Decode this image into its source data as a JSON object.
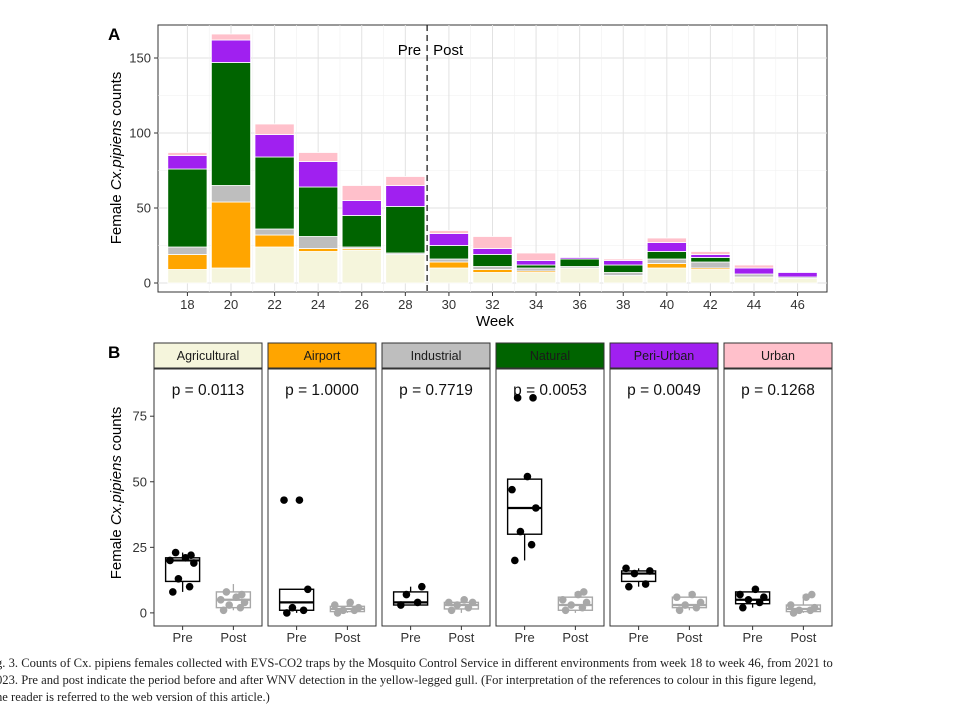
{
  "panel_a": {
    "tag": "A",
    "ylabel_prefix": "Female ",
    "ylabel_italic": "Cx.pipiens",
    "ylabel_suffix": " counts",
    "xlabel": "Week",
    "pre_label": "Pre",
    "post_label": "Post"
  },
  "panel_b": {
    "tag": "B",
    "ylabel_prefix": "Female ",
    "ylabel_italic": "Cx.pipiens",
    "ylabel_suffix": " counts"
  },
  "colors": {
    "Agricultural": "#f5f5dc",
    "Airport": "#ffa500",
    "Industrial": "#bebebe",
    "Natural": "#006400",
    "Peri-Urban": "#a020f0",
    "Urban": "#ffc0cb",
    "pre_box": "#000000",
    "post_box": "#a8a8a8"
  },
  "caption": {
    "line1": "g. 3.  Counts of Cx. pipiens females collected with EVS-CO2 traps by the Mosquito Control Service in different environments from week 18 to week 46, from 2021 to",
    "line2": "023. Pre and post indicate the period before and after WNV detection in the yellow-legged gull. (For interpretation of the references to colour in this figure legend,",
    "line3": "he reader is referred to the web version of this article.)"
  },
  "chart_data": [
    {
      "type": "bar",
      "stacked": true,
      "xlabel": "Week",
      "ylabel": "Female Cx.pipiens counts",
      "categories": [
        18,
        20,
        22,
        24,
        26,
        28,
        30,
        32,
        34,
        36,
        38,
        40,
        42,
        44,
        46
      ],
      "x_ticks": [
        18,
        20,
        22,
        24,
        26,
        28,
        30,
        32,
        34,
        36,
        38,
        40,
        42,
        44,
        46
      ],
      "ylim": [
        -6,
        172
      ],
      "y_ticks": [
        0,
        50,
        100,
        150
      ],
      "grid": true,
      "vline": {
        "x": 29,
        "style": "dashed"
      },
      "annotations": [
        "Pre",
        "Post"
      ],
      "series": [
        {
          "name": "Agricultural",
          "values": [
            9,
            10,
            24,
            21,
            22,
            19,
            10,
            7,
            7,
            10,
            5,
            10,
            9,
            4,
            3
          ]
        },
        {
          "name": "Airport",
          "values": [
            10,
            44,
            8,
            2,
            1,
            0,
            4,
            2,
            1,
            0,
            0,
            3,
            1,
            0,
            0
          ]
        },
        {
          "name": "Industrial",
          "values": [
            5,
            11,
            4,
            8,
            1,
            1,
            2,
            2,
            2,
            1,
            2,
            3,
            4,
            2,
            1
          ]
        },
        {
          "name": "Natural",
          "values": [
            52,
            82,
            48,
            33,
            21,
            31,
            9,
            8,
            2,
            5,
            5,
            5,
            3,
            0,
            0
          ]
        },
        {
          "name": "Peri-Urban",
          "values": [
            9,
            15,
            15,
            17,
            10,
            14,
            8,
            4,
            3,
            1,
            3,
            6,
            2,
            4,
            3
          ]
        },
        {
          "name": "Urban",
          "values": [
            2,
            4,
            7,
            6,
            10,
            6,
            2,
            8,
            5,
            0,
            1,
            3,
            2,
            2,
            0
          ]
        }
      ]
    },
    {
      "type": "box",
      "ylabel": "Female Cx.pipiens counts",
      "groups": [
        "Pre",
        "Post"
      ],
      "ylim": [
        -5,
        93
      ],
      "y_ticks": [
        0,
        25,
        50,
        75
      ],
      "facets": [
        {
          "name": "Agricultural",
          "pvalue": "p = 0.0113",
          "pre": {
            "q1": 12,
            "median": 20,
            "q3": 21,
            "min": 8,
            "max": 23,
            "points": [
              8,
              10,
              13,
              19,
              20,
              21,
              22,
              23
            ]
          },
          "post": {
            "q1": 2,
            "median": 5,
            "q3": 8,
            "min": 1,
            "max": 11,
            "points": [
              1,
              2,
              3,
              4,
              5,
              6,
              7,
              8
            ]
          }
        },
        {
          "name": "Airport",
          "pvalue": "p = 1.0000",
          "pre": {
            "q1": 1,
            "median": 4,
            "q3": 9,
            "min": 0,
            "max": 9,
            "points": [
              0,
              1,
              2,
              9,
              43,
              43
            ]
          },
          "post": {
            "q1": 0.5,
            "median": 1.5,
            "q3": 2.5,
            "min": 0,
            "max": 4,
            "points": [
              0,
              1,
              1,
              2,
              3,
              4
            ]
          }
        },
        {
          "name": "Industrial",
          "pvalue": "p = 0.7719",
          "pre": {
            "q1": 3,
            "median": 4,
            "q3": 8,
            "min": 3,
            "max": 10,
            "points": [
              3,
              4,
              7,
              10
            ]
          },
          "post": {
            "q1": 1.5,
            "median": 3,
            "q3": 4,
            "min": 0,
            "max": 5,
            "points": [
              1,
              2,
              3,
              4,
              4,
              5
            ]
          }
        },
        {
          "name": "Natural",
          "pvalue": "p = 0.0053",
          "pre": {
            "q1": 30,
            "median": 40,
            "q3": 51,
            "min": 20,
            "max": 52,
            "points": [
              20,
              26,
              31,
              40,
              47,
              52,
              82,
              82
            ]
          },
          "post": {
            "q1": 1,
            "median": 3,
            "q3": 6,
            "min": 0,
            "max": 8,
            "points": [
              1,
              2,
              3,
              4,
              5,
              7,
              8
            ]
          }
        },
        {
          "name": "Peri-Urban",
          "pvalue": "p = 0.0049",
          "pre": {
            "q1": 12,
            "median": 15,
            "q3": 16,
            "min": 10,
            "max": 17,
            "points": [
              10,
              11,
              15,
              16,
              17
            ]
          },
          "post": {
            "q1": 2,
            "median": 3,
            "q3": 6,
            "min": 1,
            "max": 8,
            "points": [
              1,
              2,
              3,
              4,
              6,
              7
            ]
          }
        },
        {
          "name": "Urban",
          "pvalue": "p = 0.1268",
          "pre": {
            "q1": 3.5,
            "median": 5,
            "q3": 8,
            "min": 2,
            "max": 9,
            "points": [
              2,
              4,
              5,
              6,
              7,
              9
            ]
          },
          "post": {
            "q1": 0.5,
            "median": 1.5,
            "q3": 3,
            "min": 0,
            "max": 7,
            "points": [
              0,
              1,
              1,
              2,
              3,
              6,
              7
            ]
          }
        }
      ]
    }
  ]
}
